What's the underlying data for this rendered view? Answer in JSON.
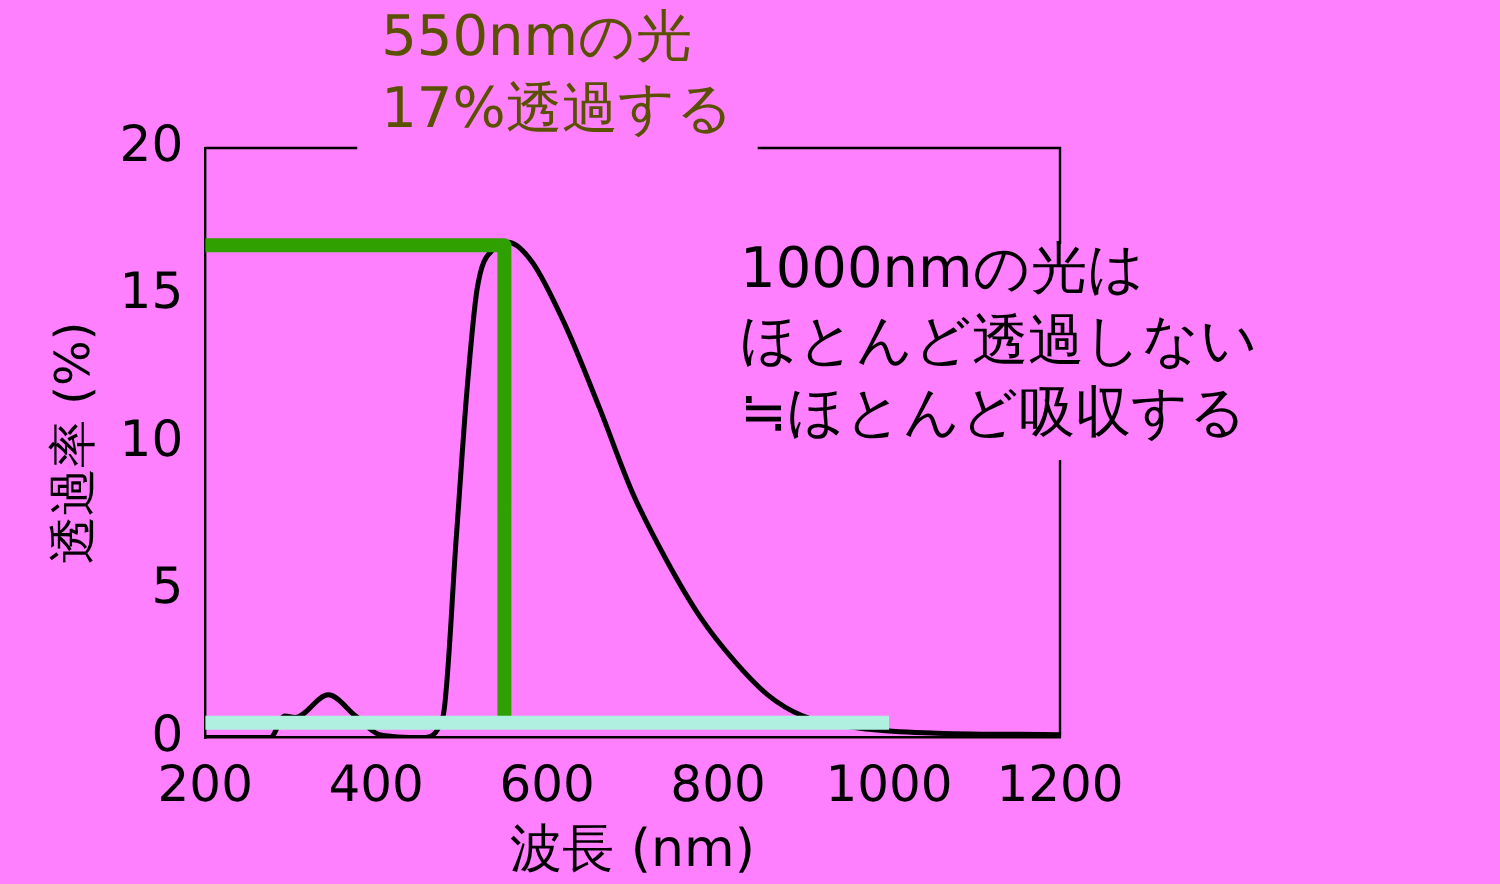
{
  "chart_data": {
    "type": "line",
    "xlabel": "波長 (nm)",
    "ylabel": "透過率 (%)",
    "xlim": [
      200,
      1200
    ],
    "xticks": [
      200,
      400,
      600,
      800,
      1000,
      1200
    ],
    "ylim": [
      0,
      20
    ],
    "yticks": [
      0,
      5,
      10,
      15,
      20
    ],
    "grid": false,
    "legend": false,
    "marker": "none",
    "line_style": "solid",
    "series": [
      {
        "color": "#000000",
        "x": [
          200,
          276,
          293,
          305,
          344,
          376,
          404,
          455,
          478,
          494,
          506,
          518,
          538,
          554,
          582,
          621,
          661,
          700,
          740,
          780,
          819,
          858,
          898,
          977,
          1056,
          1200
        ],
        "values": [
          0,
          0,
          0.73,
          0.68,
          1.45,
          0.73,
          0.1,
          0,
          0.7,
          6.9,
          11.7,
          15.2,
          16.6,
          16.8,
          16.15,
          14.0,
          11.2,
          8.3,
          6.0,
          4.05,
          2.6,
          1.45,
          0.75,
          0.28,
          0.15,
          0.1
        ]
      },
      {
        "color": "#30a000",
        "x": [
          200,
          550,
          550
        ],
        "values": [
          16.7,
          16.7,
          0.5
        ]
      },
      {
        "color": "#b0f0e0",
        "x": [
          200,
          1000
        ],
        "values": [
          0.5,
          0.5
        ]
      }
    ],
    "annotations": [
      "550nmの光",
      "17%透過する",
      "1000nmの光は",
      "ほとんど透過しない",
      "≒ほとんど吸収する"
    ]
  }
}
